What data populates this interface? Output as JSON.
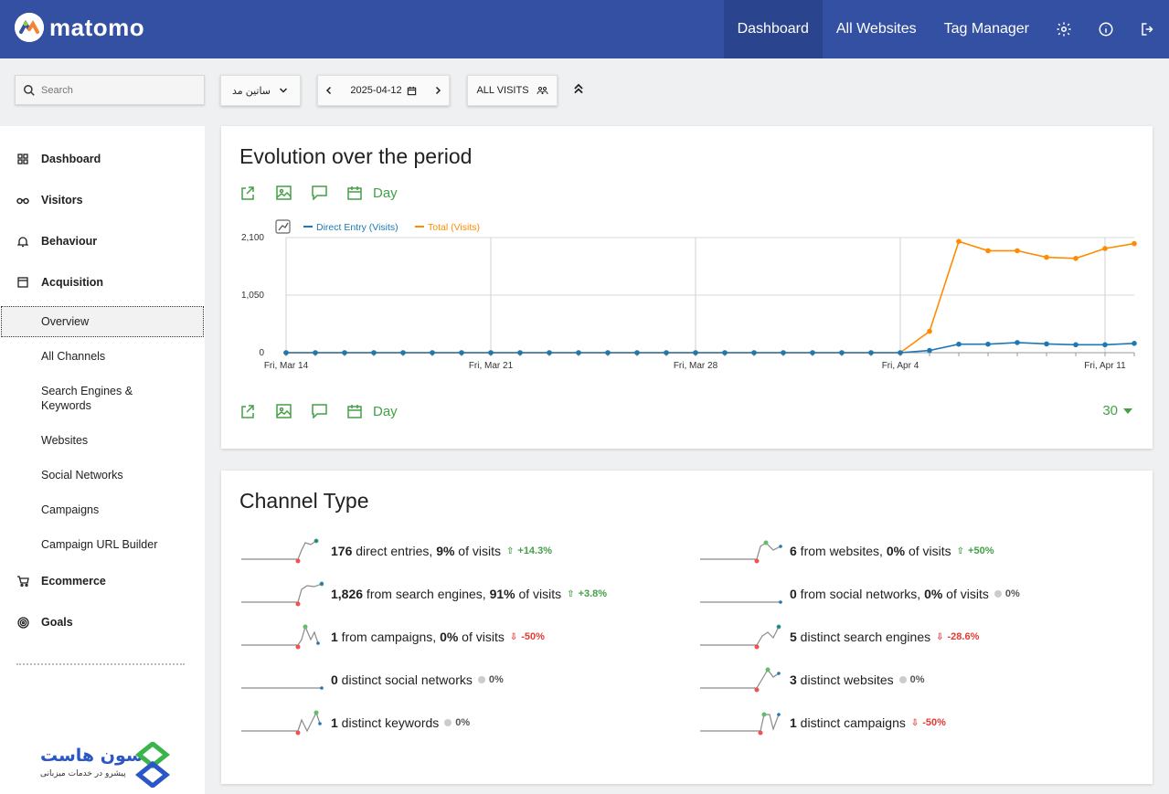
{
  "app": {
    "logo_text": "matomo"
  },
  "topnav": {
    "items": [
      {
        "label": "Dashboard",
        "active": true
      },
      {
        "label": "All Websites",
        "active": false
      },
      {
        "label": "Tag Manager",
        "active": false
      }
    ]
  },
  "controls": {
    "search_placeholder": "Search",
    "site_name": "ساتین مد",
    "date": "2025-04-12",
    "segment": "ALL VISITS"
  },
  "sidebar": {
    "categories": [
      {
        "label": "Dashboard",
        "icon": "grid-icon"
      },
      {
        "label": "Visitors",
        "icon": "binoculars-icon"
      },
      {
        "label": "Behaviour",
        "icon": "bell-icon"
      },
      {
        "label": "Acquisition",
        "icon": "window-icon"
      },
      {
        "label": "Ecommerce",
        "icon": "cart-icon"
      },
      {
        "label": "Goals",
        "icon": "target-icon"
      }
    ],
    "acquisition_items": [
      {
        "label": "Overview",
        "selected": true
      },
      {
        "label": "All Channels"
      },
      {
        "label": "Search Engines & Keywords"
      },
      {
        "label": "Websites"
      },
      {
        "label": "Social Networks"
      },
      {
        "label": "Campaigns"
      },
      {
        "label": "Campaign URL Builder"
      }
    ],
    "brand_title": "سون هاست",
    "brand_subtitle": "پیشرو در خدمات میزبانی"
  },
  "evolution": {
    "title": "Evolution over the period",
    "period_label": "Day",
    "limit": "30"
  },
  "chart_data": {
    "type": "line",
    "legend_position": "top-left",
    "grid": true,
    "ylim": [
      0,
      2100
    ],
    "y_ticks": [
      "0",
      "1,050",
      "2,100"
    ],
    "x_tick_labels": [
      "Fri, Mar 14",
      "Fri, Mar 21",
      "Fri, Mar 28",
      "Fri, Apr 4",
      "Fri, Apr 11"
    ],
    "x": [
      "2025-03-14",
      "2025-03-15",
      "2025-03-16",
      "2025-03-17",
      "2025-03-18",
      "2025-03-19",
      "2025-03-20",
      "2025-03-21",
      "2025-03-22",
      "2025-03-23",
      "2025-03-24",
      "2025-03-25",
      "2025-03-26",
      "2025-03-27",
      "2025-03-28",
      "2025-03-29",
      "2025-03-30",
      "2025-03-31",
      "2025-04-01",
      "2025-04-02",
      "2025-04-03",
      "2025-04-04",
      "2025-04-05",
      "2025-04-06",
      "2025-04-07",
      "2025-04-08",
      "2025-04-09",
      "2025-04-10",
      "2025-04-11",
      "2025-04-12"
    ],
    "series": [
      {
        "name": "Direct Entry (Visits)",
        "color": "#1f77b4",
        "values": [
          0,
          0,
          0,
          0,
          0,
          0,
          0,
          0,
          0,
          0,
          0,
          0,
          0,
          0,
          0,
          0,
          0,
          0,
          0,
          0,
          0,
          0,
          40,
          155,
          155,
          185,
          160,
          145,
          145,
          170
        ]
      },
      {
        "name": "Total (Visits)",
        "color": "#ff8c00",
        "values": [
          0,
          0,
          0,
          0,
          0,
          0,
          0,
          0,
          0,
          0,
          0,
          0,
          0,
          0,
          0,
          0,
          0,
          0,
          0,
          0,
          0,
          0,
          390,
          2030,
          1860,
          1860,
          1740,
          1720,
          1900,
          1990
        ]
      }
    ]
  },
  "channel": {
    "title": "Channel Type",
    "left": [
      {
        "num": "176",
        "text": " direct entries, ",
        "pct": "9%",
        "suffix": " of visits",
        "trend": "+14.3%",
        "dir": "up"
      },
      {
        "num": "1,826",
        "text": " from search engines, ",
        "pct": "91%",
        "suffix": " of visits",
        "trend": "+3.8%",
        "dir": "up"
      },
      {
        "num": "1",
        "text": " from campaigns, ",
        "pct": "0%",
        "suffix": " of visits",
        "trend": "-50%",
        "dir": "down"
      },
      {
        "num": "0",
        "text": " distinct social networks",
        "pct": "",
        "suffix": "",
        "trend": "0%",
        "dir": "flat"
      },
      {
        "num": "1",
        "text": " distinct keywords",
        "pct": "",
        "suffix": "",
        "trend": "0%",
        "dir": "flat"
      }
    ],
    "right": [
      {
        "num": "6",
        "text": " from websites, ",
        "pct": "0%",
        "suffix": " of visits",
        "trend": "+50%",
        "dir": "up"
      },
      {
        "num": "0",
        "text": " from social networks, ",
        "pct": "0%",
        "suffix": " of visits",
        "trend": "0%",
        "dir": "flat"
      },
      {
        "num": "5",
        "text": " distinct search engines",
        "pct": "",
        "suffix": "",
        "trend": "-28.6%",
        "dir": "down"
      },
      {
        "num": "3",
        "text": " distinct websites",
        "pct": "",
        "suffix": "",
        "trend": "0%",
        "dir": "flat"
      },
      {
        "num": "1",
        "text": " distinct campaigns",
        "pct": "",
        "suffix": "",
        "trend": "-50%",
        "dir": "down"
      }
    ]
  }
}
